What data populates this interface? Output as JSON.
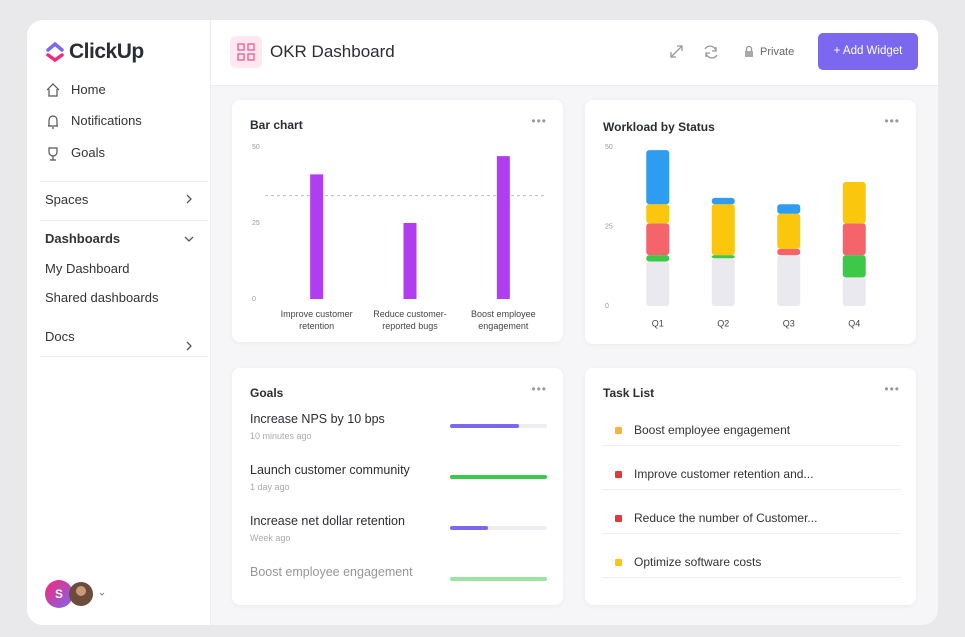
{
  "sidebar": {
    "brand": "ClickUp",
    "nav": [
      "Home",
      "Notifications",
      "Goals"
    ],
    "spaces": "Spaces",
    "dashboards": {
      "label": "Dashboards",
      "items": [
        "My Dashboard",
        "Shared dashboards"
      ]
    },
    "docs": "Docs",
    "avatar": "S"
  },
  "header": {
    "title": "OKR Dashboard",
    "privacy": "Private",
    "button": "+ Add Widget"
  },
  "bar_widget": {
    "chart_data": {
      "type": "bar",
      "title": "Bar chart",
      "categories": [
        "Improve customer retention",
        "Reduce customer-reported bugs",
        "Boost employee engagement"
      ],
      "values": [
        41,
        25,
        47
      ],
      "color": "#b03ef0",
      "ylim": [
        0,
        50
      ],
      "yticks": [
        0,
        25,
        50
      ],
      "reference_line": 34
    }
  },
  "workload_widget": {
    "chart_data": {
      "type": "stacked_bar",
      "title": "Workload by Status",
      "categories": [
        "Q1",
        "Q2",
        "Q3",
        "Q4"
      ],
      "series": [
        {
          "color": "#e9e9ef",
          "values": [
            14,
            15,
            16,
            9
          ]
        },
        {
          "color": "#3ec84a",
          "values": [
            2,
            1,
            0,
            7
          ]
        },
        {
          "color": "#f5636b",
          "values": [
            10,
            0,
            2,
            10
          ]
        },
        {
          "color": "#fbc70c",
          "values": [
            6,
            16,
            11,
            13
          ]
        },
        {
          "color": "#2e9cf0",
          "values": [
            17,
            2,
            3,
            0
          ]
        }
      ],
      "ylim": [
        0,
        50
      ],
      "yticks": [
        0,
        25,
        50
      ]
    }
  },
  "goals": {
    "title": "Goals",
    "items": [
      {
        "name": "Increase NPS by 10 bps",
        "time": "10 minutes ago",
        "progress": 71,
        "color": "#7b68ee"
      },
      {
        "name": "Launch customer community",
        "time": "1 day ago",
        "progress": 100,
        "color": "#3ec84a"
      },
      {
        "name": "Increase net dollar retention",
        "time": "Week ago",
        "progress": 39,
        "color": "#7b68ee"
      },
      {
        "name": "Boost employee engagement",
        "progress": 100,
        "color": "#3ec84a"
      }
    ]
  },
  "tasks": {
    "title": "Task List",
    "items": [
      {
        "name": "Boost employee engagement",
        "status_color": "#fbb33a",
        "flag_color": "#ef4b5b"
      },
      {
        "name": "Improve customer retention and...",
        "status_color": "#e5383b",
        "flag_color": "#ef4b5b"
      },
      {
        "name": "Reduce the number of Customer...",
        "status_color": "#e5383b",
        "flag_color": "#fbc70c"
      },
      {
        "name": "Optimize software costs",
        "status_color": "#fbc70c",
        "flag_color": "#2ec4b0"
      }
    ]
  }
}
